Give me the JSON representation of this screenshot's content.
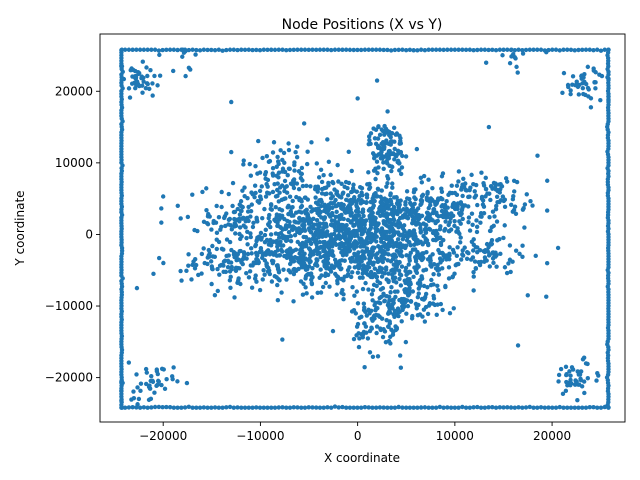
{
  "chart_data": {
    "type": "scatter",
    "title": "Node Positions (X vs Y)",
    "xlabel": "X coordinate",
    "ylabel": "Y coordinate",
    "xlim": [
      -26500,
      27500
    ],
    "ylim": [
      -26200,
      28000
    ],
    "xticks": [
      -20000,
      -10000,
      0,
      10000,
      20000
    ],
    "xtick_labels": [
      "−20000",
      "−10000",
      "0",
      "10000",
      "20000"
    ],
    "yticks": [
      -20000,
      -10000,
      0,
      10000,
      20000
    ],
    "ytick_labels": [
      "−20000",
      "−10000",
      "0",
      "10000",
      "20000"
    ],
    "grid": false,
    "color": "#1f77b4",
    "bounds": {
      "x_min": -24300,
      "x_max": 25800,
      "y_min": -24200,
      "y_max": 25800
    },
    "clusters": [
      {
        "cx": 0,
        "cy": 0,
        "sx": 5000,
        "sy": 3500,
        "n": 700
      },
      {
        "cx": -3000,
        "cy": 3000,
        "sx": 5500,
        "sy": 2600,
        "n": 320
      },
      {
        "cx": 3000,
        "cy": -3000,
        "sx": 5500,
        "sy": 2600,
        "n": 320
      },
      {
        "cx": 8000,
        "cy": 3500,
        "sx": 4000,
        "sy": 2000,
        "n": 200
      },
      {
        "cx": -8000,
        "cy": -3500,
        "sx": 4000,
        "sy": 2000,
        "n": 200
      },
      {
        "cx": 3000,
        "cy": 12000,
        "sx": 900,
        "sy": 1800,
        "n": 110
      },
      {
        "cx": 2500,
        "cy": -12000,
        "sx": 1500,
        "sy": 2500,
        "n": 110
      },
      {
        "cx": -7000,
        "cy": 9000,
        "sx": 2500,
        "sy": 2200,
        "n": 90
      },
      {
        "cx": 5000,
        "cy": -9000,
        "sx": 2500,
        "sy": 2000,
        "n": 90
      },
      {
        "cx": 14000,
        "cy": 6000,
        "sx": 2000,
        "sy": 1200,
        "n": 60
      },
      {
        "cx": 13000,
        "cy": -3000,
        "sx": 2500,
        "sy": 1200,
        "n": 60
      },
      {
        "cx": -14000,
        "cy": -4000,
        "sx": 2000,
        "sy": 1500,
        "n": 50
      },
      {
        "cx": -13000,
        "cy": 2000,
        "sx": 2000,
        "sy": 1200,
        "n": 50
      }
    ],
    "corner_clusters": [
      {
        "cx": -22500,
        "cy": 21500,
        "n": 45
      },
      {
        "cx": 23500,
        "cy": 21000,
        "n": 45
      },
      {
        "cx": -21500,
        "cy": -21000,
        "n": 45
      },
      {
        "cx": 22500,
        "cy": -20000,
        "n": 45
      },
      {
        "cx": 16500,
        "cy": 24500,
        "n": 12
      },
      {
        "cx": -18500,
        "cy": 24800,
        "n": 10
      }
    ],
    "edge_points_per_side": 130,
    "outliers": [
      [
        -13000,
        18500
      ],
      [
        -18500,
        4000
      ],
      [
        -20000,
        5300
      ],
      [
        -22700,
        -7500
      ],
      [
        -21000,
        -5500
      ],
      [
        19400,
        -8700
      ],
      [
        19500,
        7500
      ],
      [
        16500,
        -15500
      ],
      [
        9500,
        -11000
      ],
      [
        13500,
        15000
      ],
      [
        18500,
        11000
      ],
      [
        17500,
        -8500
      ],
      [
        2000,
        21500
      ],
      [
        0,
        19000
      ],
      [
        -5500,
        15500
      ],
      [
        -13000,
        11500
      ]
    ]
  }
}
